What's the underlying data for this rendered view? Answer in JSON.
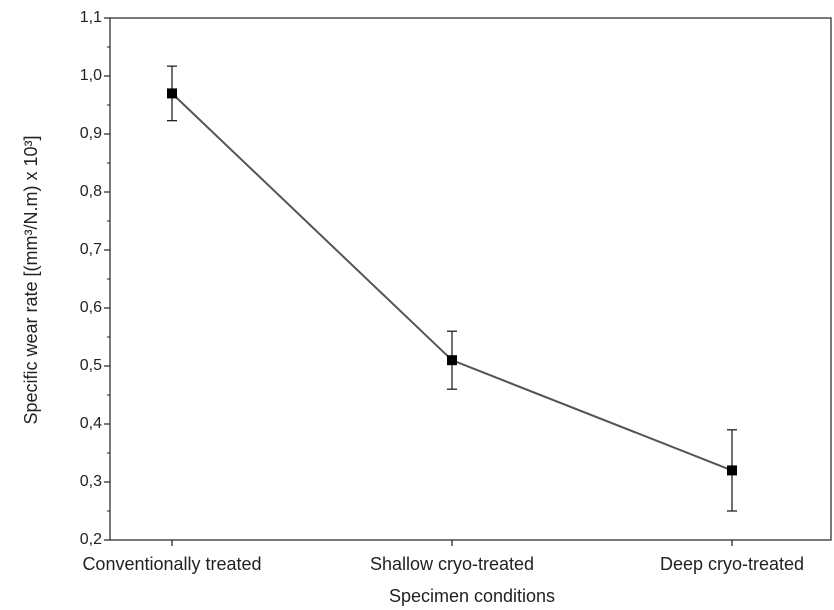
{
  "chart_data": {
    "type": "line",
    "xlabel": "Specimen conditions",
    "ylabel": "Specific wear rate [(mm³/N.m) x 10³]",
    "categories": [
      "Conventionally treated",
      "Shallow cryo-treated",
      "Deep cryo-treated"
    ],
    "series": [
      {
        "color": "#555555",
        "marker_color": "#000000",
        "values": [
          0.97,
          0.51,
          0.32
        ],
        "errors": [
          0.047,
          0.05,
          0.07
        ]
      }
    ],
    "ylim": [
      0.2,
      1.1
    ],
    "yticks": [
      {
        "value": 0.2,
        "label": "0,2"
      },
      {
        "value": 0.3,
        "label": "0,3"
      },
      {
        "value": 0.4,
        "label": "0,4"
      },
      {
        "value": 0.5,
        "label": "0,5"
      },
      {
        "value": 0.6,
        "label": "0,6"
      },
      {
        "value": 0.7,
        "label": "0,7"
      },
      {
        "value": 0.8,
        "label": "0,8"
      },
      {
        "value": 0.9,
        "label": "0,9"
      },
      {
        "value": 1.0,
        "label": "1,0"
      },
      {
        "value": 1.1,
        "label": "1,1"
      }
    ],
    "grid": false
  }
}
